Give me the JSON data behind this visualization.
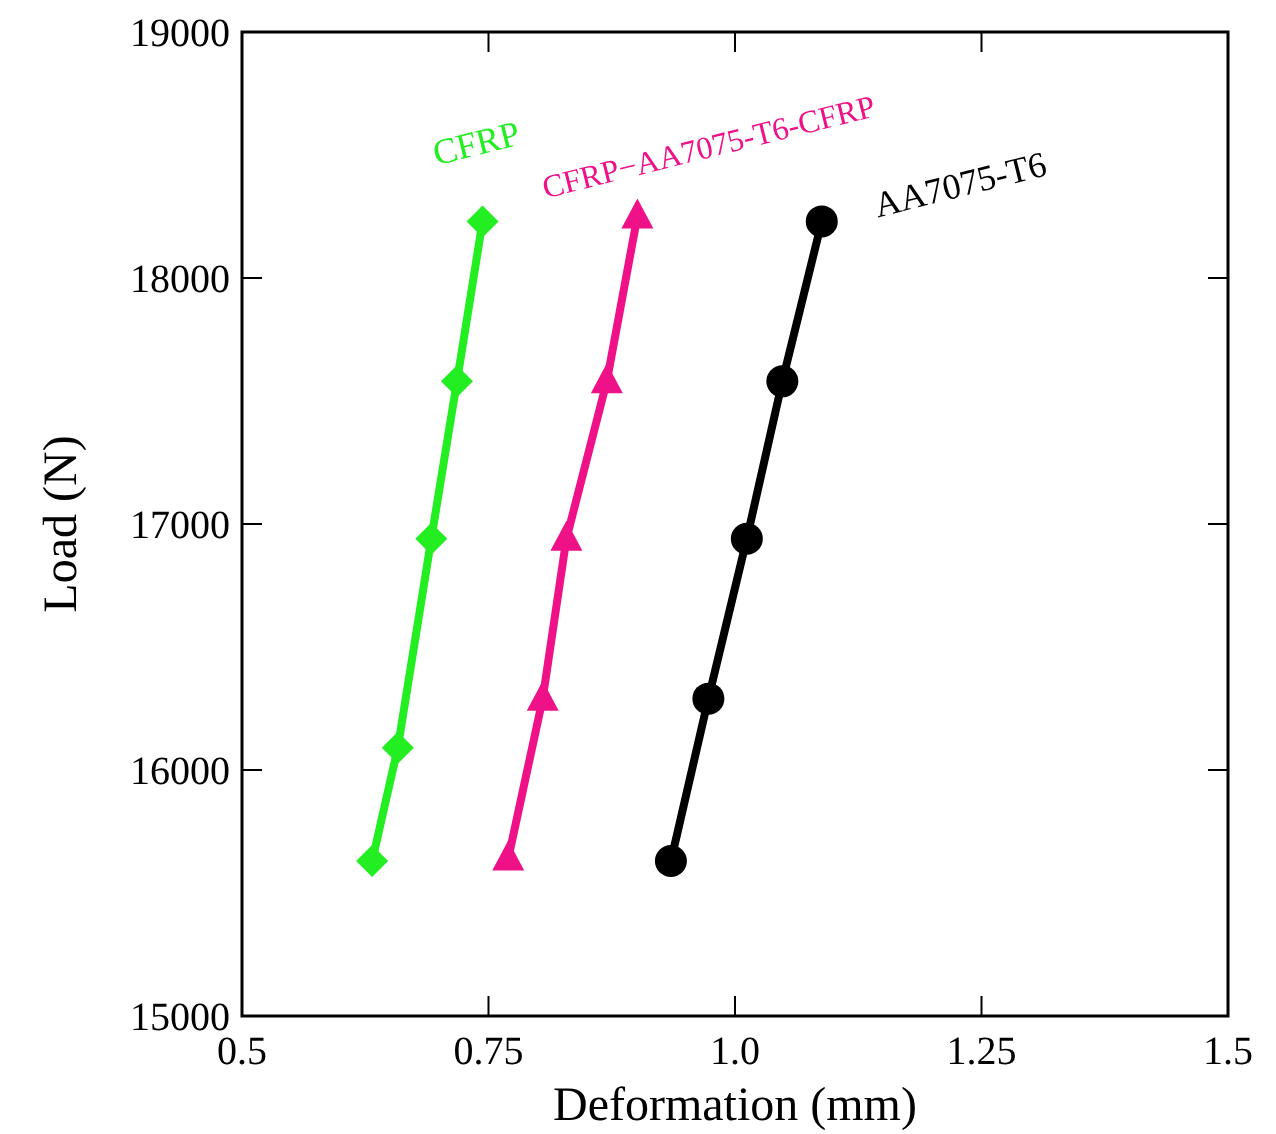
{
  "chart_data": {
    "type": "line",
    "xlabel": "Deformation (mm)",
    "ylabel": "Load (N)",
    "xlim": [
      0.5,
      1.5
    ],
    "xticks": [
      0.5,
      0.75,
      {
        "value": 1,
        "label": "1.0"
      },
      1.25,
      1.5
    ],
    "ylim": [
      15000,
      19000
    ],
    "yticks": [
      15000,
      16000,
      17000,
      18000,
      19000
    ],
    "grid": false,
    "series": [
      {
        "name": "CFRP",
        "color": "#22ee22",
        "marker": "diamond",
        "x": [
          0.632,
          0.658,
          0.692,
          0.718,
          0.744
        ],
        "values": [
          15630,
          16090,
          16940,
          17580,
          18230
        ]
      },
      {
        "name": "CFRP−AA7075-T6-CFRP",
        "color": "#ee1188",
        "marker": "triangle",
        "x": [
          0.77,
          0.805,
          0.829,
          0.87,
          0.901
        ],
        "values": [
          15640,
          16290,
          16940,
          17580,
          18250
        ]
      },
      {
        "name": "AA7075-T6",
        "color": "#000000",
        "marker": "circle",
        "x": [
          0.935,
          0.973,
          1.012,
          1.048,
          1.088
        ],
        "values": [
          15630,
          16290,
          16940,
          17580,
          18230
        ]
      }
    ]
  }
}
